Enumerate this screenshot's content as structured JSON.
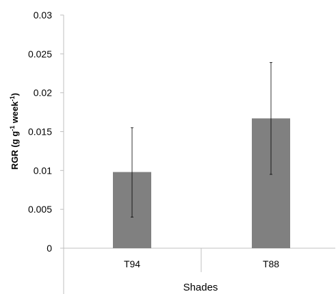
{
  "chart_data": {
    "type": "bar",
    "title": "",
    "xlabel": "Shades",
    "ylabel_parts": [
      "RGR (g g",
      "-1",
      " week",
      "-1",
      ")"
    ],
    "categories": [
      "T94",
      "T88"
    ],
    "values": [
      0.0098,
      0.0167
    ],
    "error_low": [
      0.004,
      0.0095
    ],
    "error_high": [
      0.0155,
      0.0239
    ],
    "ylim": [
      0,
      0.03
    ],
    "yticks": [
      0,
      0.005,
      0.01,
      0.015,
      0.02,
      0.025,
      0.03
    ],
    "ytick_labels": [
      "0",
      "0.005",
      "0.01",
      "0.015",
      "0.02",
      "0.025",
      "0.03"
    ],
    "grid": false,
    "bar_color": "#808080"
  }
}
